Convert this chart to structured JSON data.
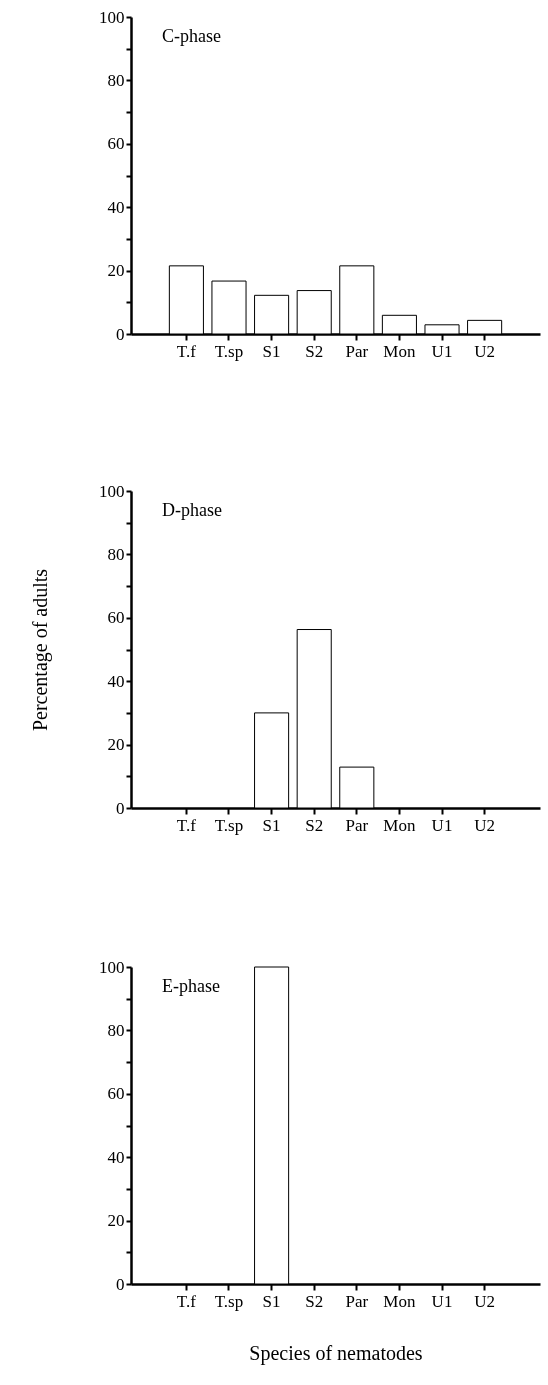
{
  "chart_data": [
    {
      "type": "bar",
      "categories": [
        "T.f",
        "T.sp",
        "S1",
        "S2",
        "Par",
        "Mon",
        "U1",
        "U2"
      ],
      "values": [
        21.5,
        16.7,
        12.2,
        13.7,
        21.5,
        5.9,
        2.9,
        4.3
      ],
      "color": "#ffffff",
      "ylim": [
        0,
        100
      ],
      "yticks": [
        0,
        {
          "value": 10,
          "label": null
        },
        20,
        {
          "value": 30,
          "label": null
        },
        40,
        {
          "value": 50,
          "label": null
        },
        60,
        {
          "value": 70,
          "label": null
        },
        80,
        {
          "value": 90,
          "label": null
        },
        100
      ],
      "grid": false,
      "annotations": [
        "C-phase"
      ]
    },
    {
      "type": "bar",
      "categories": [
        "T.f",
        "T.sp",
        "S1",
        "S2",
        "Par",
        "Mon",
        "U1",
        "U2"
      ],
      "values": [
        0,
        0,
        30,
        56.3,
        12.9,
        0,
        0,
        0
      ],
      "color": "#ffffff",
      "ylim": [
        0,
        100
      ],
      "yticks": [
        0,
        {
          "value": 10,
          "label": null
        },
        20,
        {
          "value": 30,
          "label": null
        },
        40,
        {
          "value": 50,
          "label": null
        },
        60,
        {
          "value": 70,
          "label": null
        },
        80,
        {
          "value": 90,
          "label": null
        },
        100
      ],
      "grid": false,
      "ylabel": "Percentage of adults",
      "annotations": [
        "D-phase"
      ]
    },
    {
      "type": "bar",
      "categories": [
        "T.f",
        "T.sp",
        "S1",
        "S2",
        "Par",
        "Mon",
        "U1",
        "U2"
      ],
      "values": [
        0,
        0,
        100,
        0,
        0,
        0,
        0,
        0
      ],
      "color": "#ffffff",
      "ylim": [
        0,
        100
      ],
      "yticks": [
        0,
        {
          "value": 10,
          "label": null
        },
        20,
        {
          "value": 30,
          "label": null
        },
        40,
        {
          "value": 50,
          "label": null
        },
        60,
        {
          "value": 70,
          "label": null
        },
        80,
        {
          "value": 90,
          "label": null
        },
        100
      ],
      "grid": false,
      "xlabel": "Species of nematodes",
      "annotations": [
        "E-phase"
      ]
    }
  ]
}
